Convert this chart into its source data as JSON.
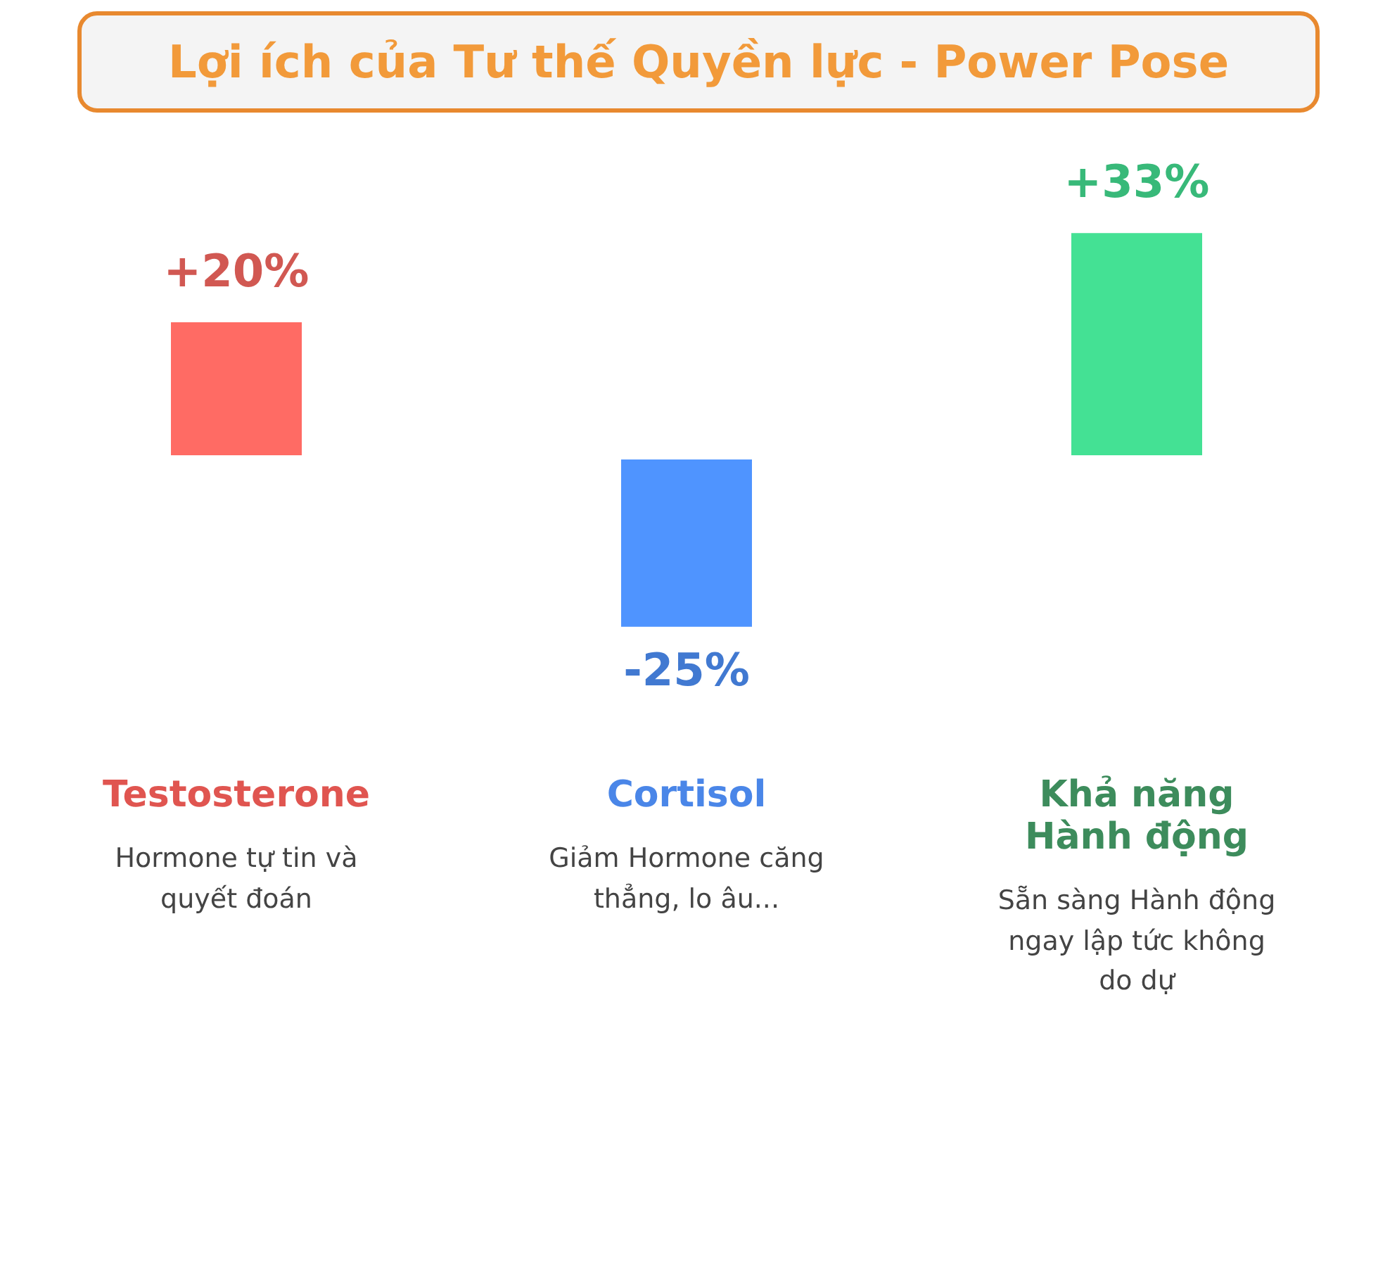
{
  "chart_data": {
    "type": "bar",
    "title": "Lợi ích của Tư thế Quyền lực - Power Pose",
    "categories": [
      "Testosterone",
      "Cortisol",
      "Khả năng Hành động"
    ],
    "values": [
      20,
      -25,
      33
    ],
    "colors": [
      "#ff6b64",
      "#4f94ff",
      "#44e194"
    ],
    "value_labels": [
      "+20%",
      "-25%",
      "+33%"
    ],
    "annotations": [
      "Hormone tự tin và quyết đoán",
      "Giảm Hormone căng thẳng, lo âu...",
      "Sẵn sàng Hành động ngay lập tức không do dự"
    ],
    "grid": false,
    "legend": false
  }
}
